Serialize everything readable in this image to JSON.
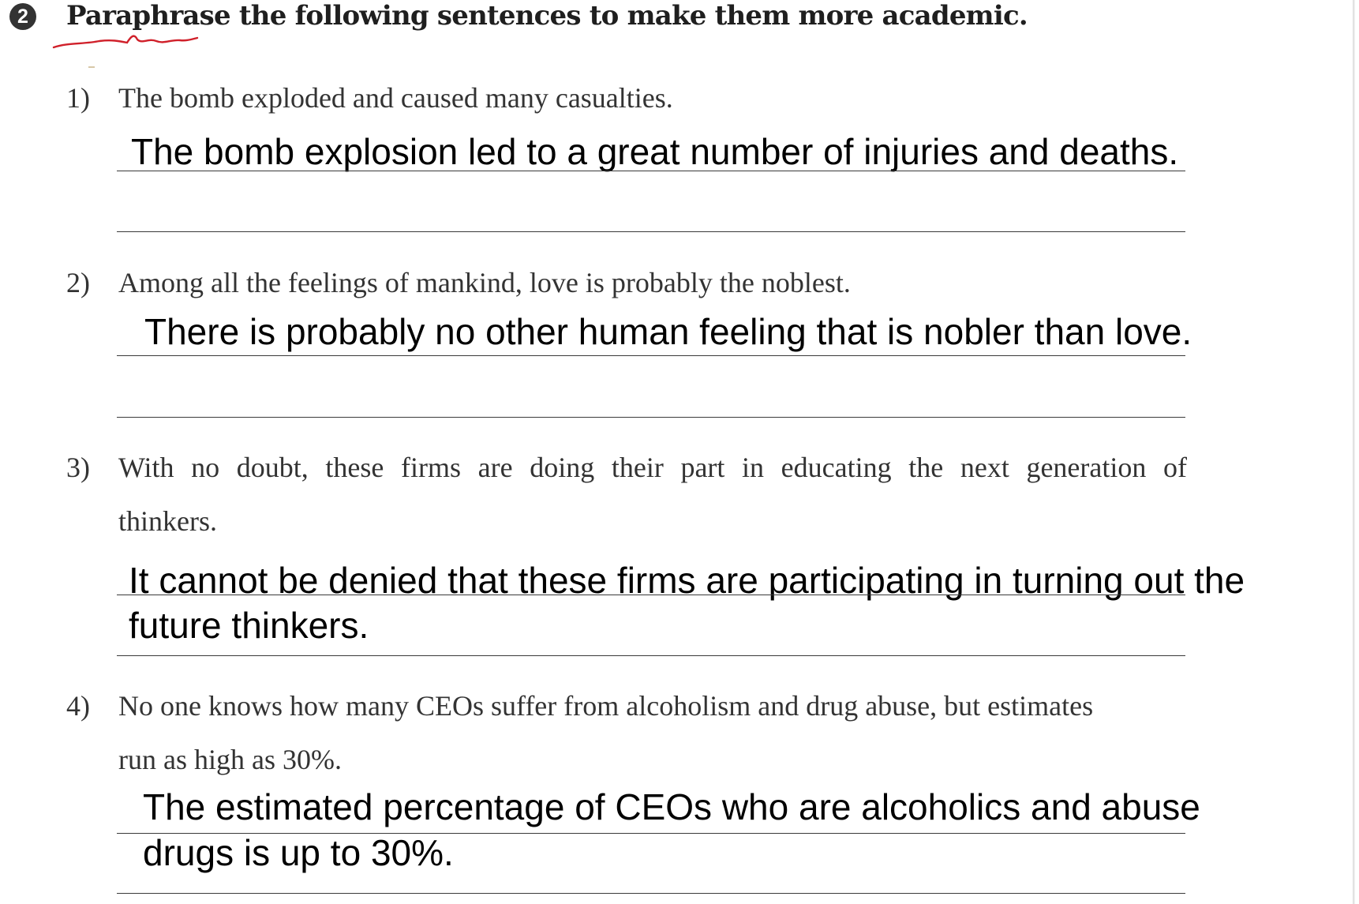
{
  "exercise": {
    "number": "2",
    "instruction": "Paraphrase the following sentences to make them more academic."
  },
  "questions": [
    {
      "num": "1)",
      "prompt_lines": [
        "The bomb exploded and caused many casualties."
      ],
      "answer_lines": [
        "The bomb explosion led to a great number of injuries and deaths."
      ]
    },
    {
      "num": "2)",
      "prompt_lines": [
        "Among all the feelings of mankind, love is probably the noblest."
      ],
      "answer_lines": [
        "There is probably no other human feeling that is nobler than love."
      ]
    },
    {
      "num": "3)",
      "prompt_lines": [
        "With no doubt, these firms are doing their part in educating the next generation of",
        "thinkers."
      ],
      "answer_lines": [
        "It cannot be denied that these firms are participating in turning out the",
        "future thinkers."
      ]
    },
    {
      "num": "4)",
      "prompt_lines": [
        "No one knows how many CEOs suffer from alcoholism and drug abuse, but estimates",
        "run as high as 30%."
      ],
      "answer_lines": [
        "The estimated percentage of CEOs who are alcoholics and abuse",
        "drugs is up to 30%."
      ]
    }
  ],
  "colors": {
    "annotation_red": "#d0202a",
    "badge_bg": "#333333"
  }
}
